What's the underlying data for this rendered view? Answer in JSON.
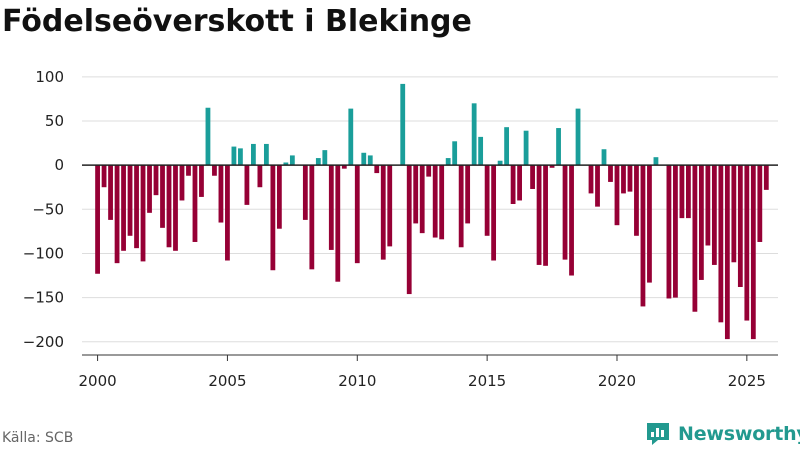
{
  "title": "Födelseöverskott i Blekinge",
  "source": "Källa: SCB",
  "brand": {
    "name": "Newsworthy",
    "icon": "newsworthy-logo-icon",
    "color": "#22998f"
  },
  "colors": {
    "positive": "#1a9e9a",
    "negative": "#960035",
    "grid": "#dddddd",
    "zero_line": "#222222"
  },
  "chart_data": {
    "type": "bar",
    "title": "Födelseöverskott i Blekinge",
    "xlabel": "",
    "ylabel": "",
    "xlim": [
      1999.4,
      2026.2
    ],
    "ylim": [
      -215,
      110
    ],
    "x_ticks": [
      2000,
      2005,
      2010,
      2015,
      2020,
      2025
    ],
    "y_ticks": [
      100,
      50,
      0,
      -50,
      -100,
      -150,
      -200
    ],
    "y_tick_labels": [
      "100",
      "50",
      "0",
      "−50",
      "−100",
      "−150",
      "−200"
    ],
    "grid": "horizontal",
    "legend": "none",
    "x": [
      2000.0,
      2000.25,
      2000.5,
      2000.75,
      2001.0,
      2001.25,
      2001.5,
      2001.75,
      2002.0,
      2002.25,
      2002.5,
      2002.75,
      2003.0,
      2003.25,
      2003.5,
      2003.75,
      2004.0,
      2004.25,
      2004.5,
      2004.75,
      2005.0,
      2005.25,
      2005.5,
      2005.75,
      2006.0,
      2006.25,
      2006.5,
      2006.75,
      2007.0,
      2007.25,
      2007.5,
      2007.75,
      2008.0,
      2008.25,
      2008.5,
      2008.75,
      2009.0,
      2009.25,
      2009.5,
      2009.75,
      2010.0,
      2010.25,
      2010.5,
      2010.75,
      2011.0,
      2011.25,
      2011.5,
      2011.75,
      2012.0,
      2012.25,
      2012.5,
      2012.75,
      2013.0,
      2013.25,
      2013.5,
      2013.75,
      2014.0,
      2014.25,
      2014.5,
      2014.75,
      2015.0,
      2015.25,
      2015.5,
      2015.75,
      2016.0,
      2016.25,
      2016.5,
      2016.75,
      2017.0,
      2017.25,
      2017.5,
      2017.75,
      2018.0,
      2018.25,
      2018.5,
      2018.75,
      2019.0,
      2019.25,
      2019.5,
      2019.75,
      2020.0,
      2020.25,
      2020.5,
      2020.75,
      2021.0,
      2021.25,
      2021.5,
      2021.75,
      2022.0,
      2022.25,
      2022.5,
      2022.75,
      2023.0,
      2023.25,
      2023.5,
      2023.75,
      2024.0,
      2024.25,
      2024.5,
      2024.75,
      2025.0,
      2025.25,
      2025.5,
      2025.75
    ],
    "values": [
      -123,
      -25,
      -62,
      -111,
      -97,
      -80,
      -94,
      -109,
      -54,
      -34,
      -71,
      -93,
      -97,
      -40,
      -12,
      -87,
      -36,
      65,
      -12,
      -65,
      -108,
      21,
      19,
      -45,
      24,
      -25,
      24,
      -119,
      -72,
      3,
      11,
      0,
      -62,
      -118,
      8,
      17,
      -96,
      -132,
      -4,
      64,
      -111,
      14,
      11,
      -9,
      -107,
      -92,
      0,
      92,
      -146,
      -66,
      -77,
      -13,
      -82,
      -84,
      8,
      27,
      -93,
      -66,
      70,
      32,
      -80,
      -108,
      5,
      43,
      -44,
      -40,
      39,
      -27,
      -113,
      -114,
      -3,
      42,
      -107,
      -125,
      64,
      0,
      -32,
      -47,
      18,
      -19,
      -68,
      -32,
      -30,
      -80,
      -160,
      -133,
      9,
      0,
      -151,
      -150,
      -60,
      -60,
      -166,
      -130,
      -91,
      -113,
      -178,
      -197,
      -110,
      -138,
      -176,
      -197,
      -87,
      -28
    ]
  }
}
